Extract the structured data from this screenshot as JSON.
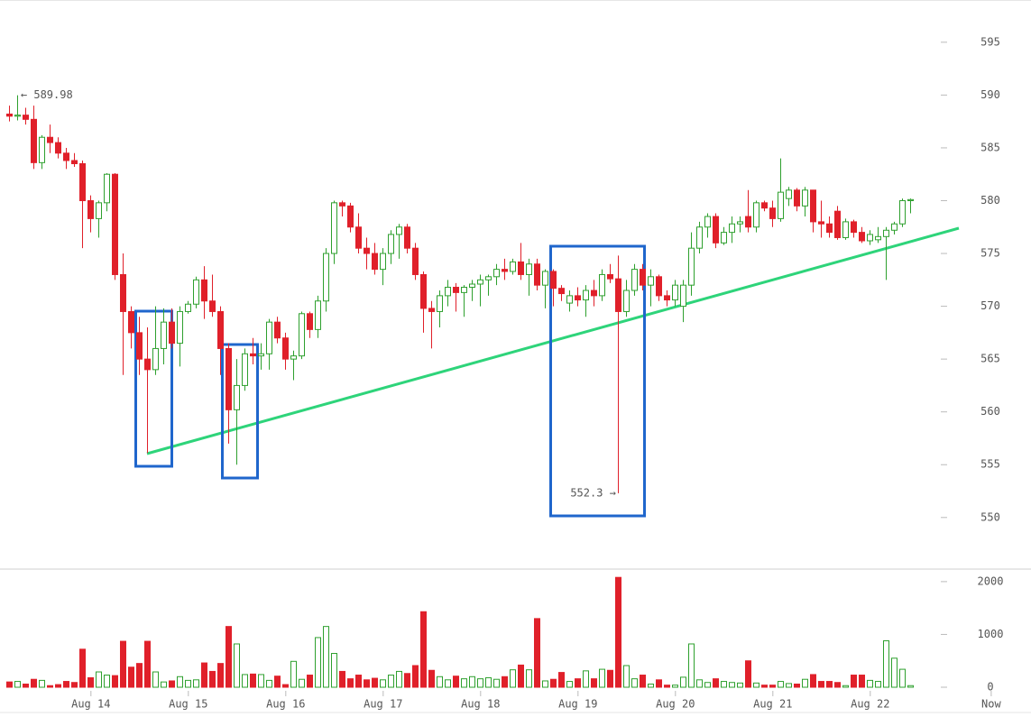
{
  "chart_data": {
    "type": "candlestick",
    "up_color": "#2ea02e",
    "down_color": "#e0202a",
    "xlim": [
      -1.1,
      125.9
    ],
    "xticks": [
      {
        "value": 10.1,
        "label": "Aug 14"
      },
      {
        "value": 22.1,
        "label": "Aug 15"
      },
      {
        "value": 34.1,
        "label": "Aug 16"
      },
      {
        "value": 46.1,
        "label": "Aug 17"
      },
      {
        "value": 58.1,
        "label": "Aug 18"
      },
      {
        "value": 70.1,
        "label": "Aug 19"
      },
      {
        "value": 82.1,
        "label": "Aug 20"
      },
      {
        "value": 94.1,
        "label": "Aug 21"
      },
      {
        "value": 106.1,
        "label": "Aug 22"
      },
      {
        "value": 121,
        "label": "Now"
      }
    ],
    "ylim": [
      545.2,
      599.0
    ],
    "yticks": [
      550,
      555,
      560,
      565,
      570,
      575,
      580,
      585,
      590,
      595
    ],
    "volume_ylim": [
      0,
      2220
    ],
    "volume_yticks": [
      0,
      1000,
      2000
    ],
    "annotations": [
      {
        "text": "← 589.98",
        "value": 589.98
      },
      {
        "text": "552.3 →",
        "value": 552.3
      }
    ],
    "open": [
      588.2,
      588.0,
      588.1,
      587.7,
      583.6,
      586.0,
      585.5,
      584.5,
      583.8,
      583.5,
      580.0,
      578.3,
      579.8,
      582.5,
      573.0,
      569.5,
      567.5,
      565.0,
      564.0,
      566.0,
      568.5,
      566.5,
      569.5,
      570.2,
      572.5,
      570.5,
      569.5,
      566.0,
      560.2,
      562.5,
      565.5,
      565.3,
      565.5,
      568.5,
      567.0,
      565.0,
      565.3,
      569.3,
      567.8,
      570.5,
      575.0,
      579.8,
      579.5,
      577.5,
      575.5,
      575.0,
      573.5,
      575.0,
      576.8,
      577.5,
      575.5,
      573.0,
      569.8,
      569.5,
      571.0,
      571.8,
      571.3,
      571.8,
      572.1,
      572.5,
      572.8,
      573.5,
      573.3,
      574.2,
      573.0,
      574.0,
      572.0,
      573.3,
      571.7,
      570.3,
      571.0,
      570.6,
      571.5,
      571.0,
      573.0,
      572.6,
      569.5,
      571.5,
      573.5,
      572.0,
      572.8,
      571.0,
      570.6,
      570.0,
      572.0,
      575.5,
      577.5,
      578.5,
      576.0,
      577.0,
      577.8,
      578.5,
      577.5,
      579.8,
      579.3,
      578.3,
      580.2,
      581.0,
      579.5,
      581.0,
      578.0,
      577.8,
      579.0,
      576.5,
      578.0,
      577.0,
      576.2,
      576.3,
      576.6,
      577.2,
      577.8,
      580.0
    ],
    "high": [
      589.0,
      589.98,
      588.8,
      589.0,
      586.2,
      587.2,
      586.0,
      585.0,
      584.5,
      583.8,
      580.5,
      580.0,
      582.6,
      582.6,
      575.0,
      570.0,
      569.0,
      568.0,
      570.0,
      569.8,
      569.8,
      570.0,
      570.5,
      572.8,
      573.8,
      573.0,
      570.0,
      566.5,
      565.0,
      566.0,
      567.0,
      566.5,
      568.8,
      569.0,
      567.5,
      565.8,
      569.5,
      569.5,
      571.0,
      575.5,
      580.0,
      580.0,
      579.8,
      578.8,
      576.5,
      576.0,
      575.5,
      577.2,
      577.8,
      577.8,
      576.0,
      573.3,
      570.5,
      571.5,
      572.5,
      572.2,
      572.0,
      572.5,
      573.0,
      573.0,
      574.0,
      574.5,
      574.5,
      576.0,
      574.5,
      574.5,
      573.5,
      573.5,
      572.0,
      571.5,
      571.8,
      572.0,
      572.5,
      573.5,
      574.0,
      574.8,
      572.5,
      574.0,
      574.0,
      573.5,
      573.0,
      571.5,
      572.5,
      572.5,
      577.0,
      578.0,
      578.8,
      578.8,
      577.5,
      578.5,
      578.5,
      581.0,
      580.0,
      580.0,
      580.0,
      584.0,
      581.3,
      581.2,
      581.3,
      581.0,
      580.0,
      578.5,
      579.5,
      578.3,
      578.2,
      577.5,
      577.2,
      577.5,
      577.5,
      578.0,
      580.2,
      580.2
    ],
    "low": [
      587.5,
      587.6,
      587.2,
      583.0,
      583.0,
      584.5,
      584.0,
      583.0,
      583.2,
      575.5,
      577.0,
      576.5,
      579.0,
      572.5,
      563.5,
      566.0,
      563.5,
      556.1,
      563.5,
      564.5,
      566.0,
      564.3,
      569.3,
      569.8,
      568.8,
      569.0,
      563.5,
      557.0,
      555.0,
      562.0,
      564.5,
      564.0,
      564.0,
      566.5,
      564.0,
      563.0,
      565.0,
      567.0,
      567.0,
      569.5,
      574.0,
      578.5,
      577.0,
      575.0,
      573.5,
      573.0,
      572.0,
      574.0,
      574.5,
      575.0,
      572.5,
      567.5,
      566.0,
      568.0,
      570.0,
      569.5,
      569.0,
      570.5,
      570.0,
      571.0,
      572.0,
      572.5,
      573.0,
      572.5,
      571.0,
      571.5,
      569.8,
      570.0,
      570.5,
      569.5,
      570.0,
      569.0,
      570.0,
      570.5,
      572.2,
      552.3,
      569.0,
      571.0,
      571.5,
      570.0,
      570.5,
      570.0,
      570.0,
      568.5,
      571.0,
      575.0,
      576.5,
      575.5,
      575.8,
      576.0,
      577.0,
      577.0,
      577.0,
      579.0,
      577.5,
      578.0,
      579.5,
      579.0,
      578.5,
      577.0,
      576.5,
      576.5,
      576.3,
      576.3,
      576.5,
      576.0,
      575.8,
      576.0,
      572.5,
      576.8,
      577.5,
      578.8
    ],
    "close": [
      588.0,
      588.1,
      587.7,
      583.6,
      586.0,
      585.5,
      584.5,
      583.8,
      583.5,
      580.0,
      578.3,
      579.8,
      582.5,
      573.0,
      569.5,
      567.5,
      565.0,
      564.0,
      566.0,
      568.5,
      566.5,
      569.5,
      570.2,
      572.5,
      570.5,
      569.5,
      566.0,
      560.2,
      562.5,
      565.5,
      565.3,
      565.5,
      568.5,
      567.0,
      565.0,
      565.3,
      569.3,
      567.8,
      570.5,
      575.0,
      579.8,
      579.5,
      577.5,
      575.5,
      575.0,
      573.5,
      575.0,
      576.8,
      577.5,
      575.5,
      573.0,
      569.8,
      569.5,
      571.0,
      571.8,
      571.3,
      571.8,
      572.1,
      572.5,
      572.8,
      573.5,
      573.3,
      574.2,
      573.0,
      574.0,
      572.0,
      573.3,
      571.7,
      571.2,
      571.0,
      570.6,
      571.5,
      571.0,
      573.0,
      572.6,
      569.5,
      571.5,
      573.5,
      572.0,
      572.8,
      571.0,
      570.6,
      572.0,
      572.0,
      575.5,
      577.5,
      578.5,
      576.0,
      577.0,
      577.8,
      578.0,
      577.5,
      579.8,
      579.3,
      578.3,
      580.8,
      581.0,
      579.5,
      581.0,
      578.0,
      577.8,
      577.0,
      576.5,
      578.0,
      577.0,
      576.2,
      576.8,
      576.6,
      577.2,
      577.8,
      580.0,
      580.1
    ],
    "volume": [
      100,
      110,
      60,
      150,
      130,
      30,
      50,
      110,
      90,
      720,
      180,
      290,
      230,
      220,
      870,
      380,
      450,
      870,
      290,
      100,
      120,
      200,
      130,
      140,
      460,
      300,
      450,
      1150,
      820,
      240,
      250,
      240,
      130,
      210,
      50,
      490,
      150,
      230,
      940,
      1150,
      640,
      300,
      160,
      230,
      140,
      170,
      140,
      230,
      300,
      260,
      410,
      1430,
      320,
      200,
      140,
      210,
      160,
      200,
      160,
      180,
      150,
      200,
      330,
      420,
      330,
      1300,
      120,
      150,
      280,
      110,
      160,
      310,
      160,
      340,
      320,
      2080,
      410,
      160,
      230,
      60,
      140,
      40,
      40,
      190,
      820,
      140,
      90,
      160,
      110,
      90,
      80,
      500,
      80,
      40,
      40,
      110,
      70,
      60,
      150,
      240,
      110,
      110,
      90,
      30,
      230,
      230,
      130,
      110,
      880,
      550,
      340,
      30
    ]
  }
}
